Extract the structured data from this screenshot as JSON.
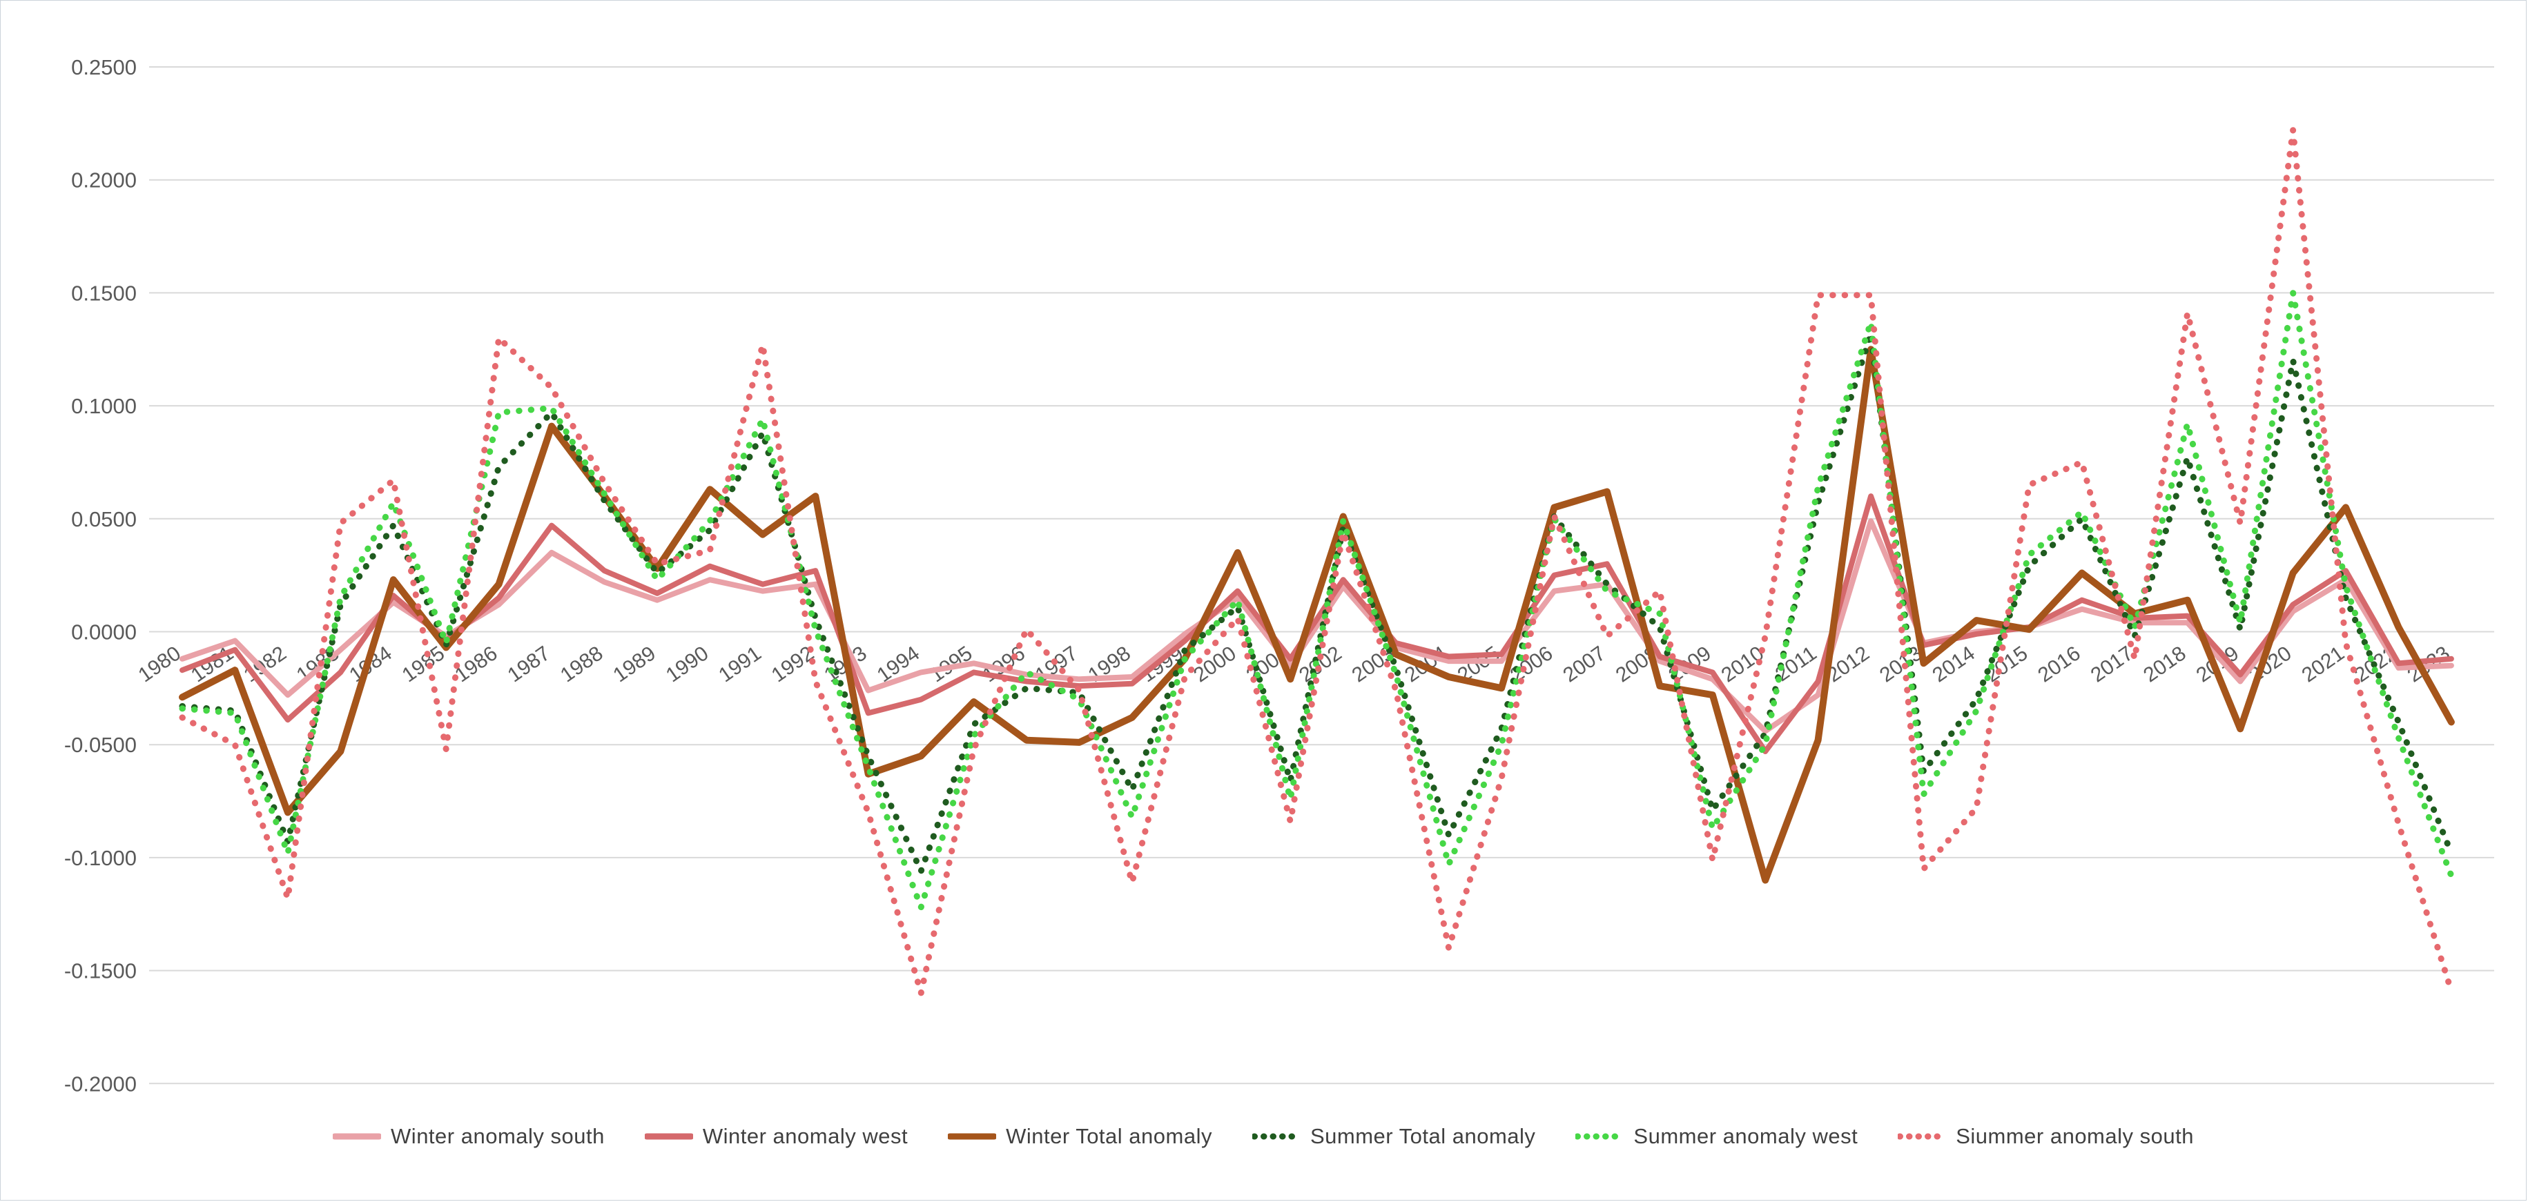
{
  "axis": {
    "y_tick_format_decimals": 4,
    "y_ticks": [
      0.25,
      0.2,
      0.15,
      0.1,
      0.05,
      0.0,
      -0.05,
      -0.1,
      -0.15,
      -0.2
    ],
    "label_color": "#595959",
    "gridline_color": "#d9d9d9"
  },
  "chart_data": {
    "type": "line",
    "title": "",
    "xlabel": "",
    "ylabel": "",
    "ylim": [
      -0.2,
      0.25
    ],
    "grid": true,
    "legend_position": "bottom",
    "categories": [
      1980,
      1981,
      1982,
      1983,
      1984,
      1985,
      1986,
      1987,
      1988,
      1989,
      1990,
      1991,
      1992,
      1993,
      1994,
      1995,
      1996,
      1997,
      1998,
      1999,
      2000,
      2001,
      2002,
      2003,
      2004,
      2005,
      2006,
      2007,
      2008,
      2009,
      2010,
      2011,
      2012,
      2013,
      2014,
      2015,
      2016,
      2017,
      2018,
      2019,
      2020,
      2021,
      2022,
      2023
    ],
    "series": [
      {
        "name": "Winter anomaly south",
        "color": "#e9a1a7",
        "style": "solid",
        "values": [
          -0.012,
          -0.004,
          -0.028,
          -0.008,
          0.013,
          -0.002,
          0.012,
          0.035,
          0.022,
          0.014,
          0.023,
          0.018,
          0.021,
          -0.026,
          -0.018,
          -0.014,
          -0.019,
          -0.021,
          -0.02,
          -0.001,
          0.015,
          -0.015,
          0.02,
          -0.007,
          -0.013,
          -0.013,
          0.018,
          0.021,
          -0.013,
          -0.021,
          -0.044,
          -0.028,
          0.049,
          -0.005,
          0.0,
          0.002,
          0.01,
          0.004,
          0.004,
          -0.022,
          0.009,
          0.023,
          -0.016,
          -0.015
        ]
      },
      {
        "name": "Winter anomaly west",
        "color": "#d5696c",
        "style": "solid",
        "values": [
          -0.017,
          -0.008,
          -0.039,
          -0.018,
          0.016,
          -0.004,
          0.015,
          0.047,
          0.027,
          0.017,
          0.029,
          0.021,
          0.027,
          -0.036,
          -0.03,
          -0.018,
          -0.022,
          -0.024,
          -0.023,
          -0.004,
          0.018,
          -0.012,
          0.023,
          -0.005,
          -0.011,
          -0.01,
          0.025,
          0.03,
          -0.011,
          -0.018,
          -0.053,
          -0.022,
          0.06,
          -0.006,
          -0.001,
          0.002,
          0.014,
          0.006,
          0.007,
          -0.019,
          0.012,
          0.027,
          -0.014,
          -0.012
        ]
      },
      {
        "name": "Winter Total anomaly",
        "color": "#a5551b",
        "style": "solid",
        "values": [
          -0.029,
          -0.017,
          -0.08,
          -0.053,
          0.023,
          -0.007,
          0.021,
          0.091,
          0.06,
          0.028,
          0.063,
          0.043,
          0.06,
          -0.063,
          -0.055,
          -0.031,
          -0.048,
          -0.049,
          -0.038,
          -0.012,
          0.035,
          -0.021,
          0.051,
          -0.01,
          -0.02,
          -0.025,
          0.055,
          0.062,
          -0.024,
          -0.028,
          -0.11,
          -0.048,
          0.125,
          -0.014,
          0.005,
          0.001,
          0.026,
          0.008,
          0.014,
          -0.043,
          0.026,
          0.055,
          0.002,
          -0.04
        ]
      },
      {
        "name": "Summer Total anomaly",
        "color": "#1f5b1f",
        "style": "dotted",
        "values": [
          -0.033,
          -0.035,
          -0.093,
          0.012,
          0.047,
          -0.006,
          0.073,
          0.097,
          0.058,
          0.026,
          0.045,
          0.088,
          0.006,
          -0.055,
          -0.106,
          -0.041,
          -0.025,
          -0.027,
          -0.07,
          -0.008,
          0.011,
          -0.066,
          0.046,
          -0.016,
          -0.09,
          -0.043,
          0.051,
          0.021,
          0.002,
          -0.079,
          -0.045,
          0.057,
          0.132,
          -0.062,
          -0.03,
          0.029,
          0.05,
          -0.002,
          0.077,
          0.001,
          0.12,
          0.015,
          -0.04,
          -0.098
        ]
      },
      {
        "name": "Summer anomaly west",
        "color": "#46d746",
        "style": "dotted",
        "values": [
          -0.034,
          -0.036,
          -0.098,
          0.015,
          0.057,
          -0.005,
          0.097,
          0.099,
          0.061,
          0.023,
          0.049,
          0.094,
          0.001,
          -0.06,
          -0.122,
          -0.046,
          -0.018,
          -0.03,
          -0.082,
          -0.012,
          0.014,
          -0.074,
          0.049,
          -0.019,
          -0.103,
          -0.05,
          0.05,
          0.018,
          0.008,
          -0.087,
          -0.05,
          0.064,
          0.137,
          -0.072,
          -0.035,
          0.034,
          0.053,
          0.002,
          0.092,
          0.004,
          0.15,
          0.02,
          -0.047,
          -0.108
        ]
      },
      {
        "name": "Siummer anomaly south",
        "color": "#e6696e",
        "style": "dotted",
        "values": [
          -0.038,
          -0.05,
          -0.118,
          0.048,
          0.067,
          -0.052,
          0.13,
          0.108,
          0.066,
          0.03,
          0.036,
          0.127,
          -0.022,
          -0.08,
          -0.16,
          -0.052,
          0.001,
          -0.026,
          -0.111,
          -0.02,
          0.006,
          -0.084,
          0.044,
          -0.026,
          -0.14,
          -0.065,
          0.051,
          -0.002,
          0.018,
          -0.101,
          -0.002,
          0.149,
          0.149,
          -0.105,
          -0.078,
          0.065,
          0.075,
          -0.012,
          0.141,
          0.048,
          0.222,
          -0.005,
          -0.085,
          -0.159
        ]
      }
    ]
  }
}
